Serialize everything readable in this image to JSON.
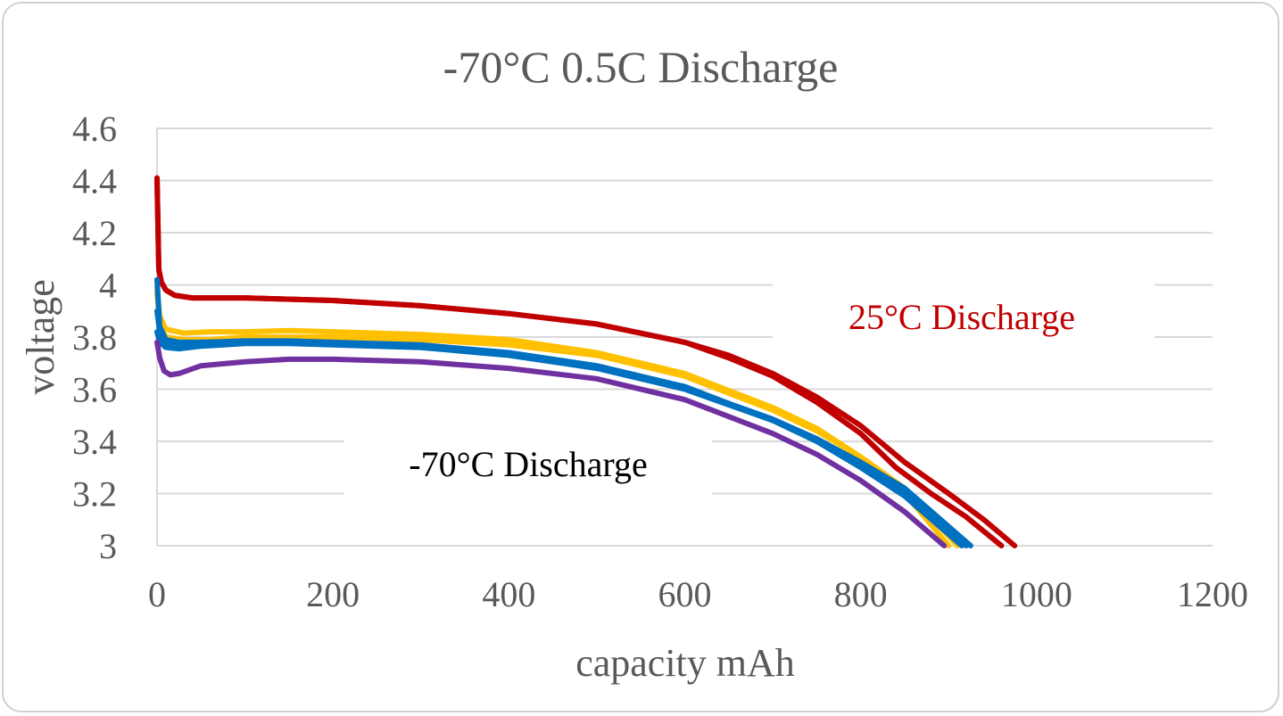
{
  "chart_data": {
    "type": "line",
    "title": "-70°C 0.5C Discharge",
    "xlabel": "capacity mAh",
    "ylabel": "voltage",
    "xlim": [
      0,
      1200
    ],
    "ylim": [
      3,
      4.6
    ],
    "xticks": [
      "0",
      "200",
      "400",
      "600",
      "800",
      "1000",
      "1200"
    ],
    "yticks": [
      "3",
      "3.2",
      "3.4",
      "3.6",
      "3.8",
      "4",
      "4.2",
      "4.4",
      "4.6"
    ],
    "grid": "horizontal",
    "legend": "none",
    "annotations": [
      {
        "text": "25°C Discharge",
        "color": "#c00000",
        "near": "upper-right"
      },
      {
        "text": "-70°C Discharge",
        "color": "#000000",
        "near": "lower-left"
      }
    ],
    "series": [
      {
        "color": "#c00000",
        "x": [
          0,
          2,
          5,
          10,
          20,
          40,
          100,
          200,
          300,
          400,
          500,
          600,
          650,
          700,
          750,
          800,
          850,
          900,
          940,
          975
        ],
        "y": [
          4.41,
          4.06,
          4.01,
          3.98,
          3.96,
          3.95,
          3.95,
          3.94,
          3.92,
          3.89,
          3.85,
          3.78,
          3.73,
          3.66,
          3.57,
          3.46,
          3.32,
          3.2,
          3.1,
          3.0
        ]
      },
      {
        "color": "#c00000",
        "x": [
          0,
          2,
          5,
          10,
          20,
          40,
          100,
          200,
          300,
          400,
          500,
          600,
          650,
          700,
          750,
          800,
          840,
          880,
          920,
          960
        ],
        "y": [
          4.41,
          4.06,
          4.01,
          3.98,
          3.96,
          3.95,
          3.95,
          3.94,
          3.92,
          3.89,
          3.85,
          3.78,
          3.72,
          3.65,
          3.55,
          3.43,
          3.3,
          3.2,
          3.11,
          3.0
        ]
      },
      {
        "color": "#ffc000",
        "x": [
          0,
          3,
          10,
          30,
          60,
          100,
          150,
          200,
          300,
          400,
          500,
          600,
          700,
          750,
          800,
          850,
          900
        ],
        "y": [
          3.99,
          3.88,
          3.83,
          3.815,
          3.82,
          3.82,
          3.825,
          3.82,
          3.81,
          3.79,
          3.74,
          3.66,
          3.53,
          3.45,
          3.34,
          3.2,
          3.0
        ]
      },
      {
        "color": "#ffc000",
        "x": [
          0,
          3,
          10,
          30,
          60,
          100,
          150,
          200,
          300,
          400,
          500,
          600,
          700,
          750,
          800,
          850,
          910
        ],
        "y": [
          3.97,
          3.85,
          3.8,
          3.79,
          3.79,
          3.8,
          3.8,
          3.8,
          3.79,
          3.77,
          3.73,
          3.65,
          3.52,
          3.44,
          3.34,
          3.22,
          3.0
        ]
      },
      {
        "color": "#0070c0",
        "x": [
          0,
          3,
          10,
          25,
          50,
          100,
          150,
          200,
          300,
          400,
          500,
          600,
          700,
          750,
          800,
          850,
          925
        ],
        "y": [
          3.82,
          3.78,
          3.76,
          3.755,
          3.765,
          3.775,
          3.775,
          3.77,
          3.76,
          3.73,
          3.68,
          3.6,
          3.48,
          3.41,
          3.32,
          3.22,
          3.0
        ]
      },
      {
        "color": "#0070c0",
        "x": [
          0,
          3,
          10,
          25,
          50,
          100,
          150,
          200,
          300,
          400,
          500,
          600,
          700,
          750,
          800,
          850,
          915
        ],
        "y": [
          3.9,
          3.82,
          3.78,
          3.775,
          3.78,
          3.785,
          3.785,
          3.78,
          3.77,
          3.74,
          3.69,
          3.61,
          3.48,
          3.4,
          3.3,
          3.19,
          3.0
        ]
      },
      {
        "color": "#0070c0",
        "x": [
          0,
          3,
          10,
          25,
          50,
          100,
          150,
          200,
          300,
          400,
          500,
          600,
          700,
          750,
          800,
          850,
          920
        ],
        "y": [
          4.02,
          3.84,
          3.79,
          3.78,
          3.78,
          3.78,
          3.78,
          3.775,
          3.765,
          3.735,
          3.685,
          3.605,
          3.485,
          3.41,
          3.315,
          3.205,
          3.0
        ]
      },
      {
        "color": "#7030a0",
        "x": [
          0,
          3,
          8,
          15,
          25,
          50,
          100,
          150,
          200,
          300,
          400,
          500,
          600,
          700,
          750,
          800,
          850,
          895
        ],
        "y": [
          3.78,
          3.72,
          3.67,
          3.655,
          3.66,
          3.69,
          3.705,
          3.715,
          3.715,
          3.705,
          3.68,
          3.64,
          3.56,
          3.43,
          3.35,
          3.25,
          3.13,
          3.0
        ]
      }
    ]
  }
}
